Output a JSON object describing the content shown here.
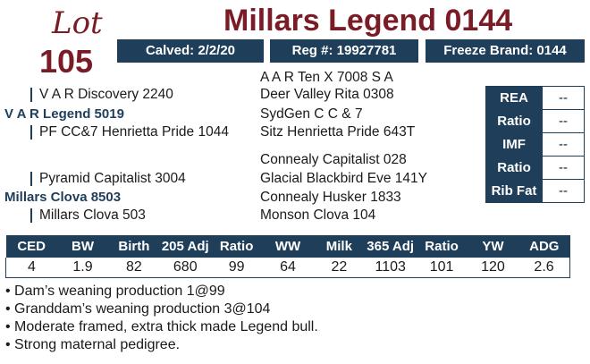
{
  "header": {
    "lot_label": "Lot",
    "lot_number": "105",
    "title": "Millars Legend 0144",
    "calved": "Calved: 2/2/20",
    "reg": "Reg #: 19927781",
    "freeze_brand": "Freeze Brand: 0144"
  },
  "pedigree": {
    "sire": "V A R Legend 5019",
    "sire_sire": "V A R Discovery 2240",
    "sire_dam": "PF CC&7 Henrietta Pride 1044",
    "ssire_sire": "A A R Ten X 7008 S A",
    "ssire_dam": "Deer Valley Rita 0308",
    "sdam_sire": "SydGen C C & 7",
    "sdam_dam": "Sitz Henrietta Pride 643T",
    "dam": "Millars Clova 8503",
    "dam_sire": "Pyramid Capitalist 3004",
    "dam_dam": "Millars Clova 503",
    "dsire_sire": "Connealy Capitalist 028",
    "dsire_dam": "Glacial Blackbird Eve 141Y",
    "ddam_sire": "Connealy Husker 1833",
    "ddam_dam": "Monson Clova 104"
  },
  "carcass": [
    {
      "label": "REA",
      "value": "--"
    },
    {
      "label": "Ratio",
      "value": "--"
    },
    {
      "label": "IMF",
      "value": "--"
    },
    {
      "label": "Ratio",
      "value": "--"
    },
    {
      "label": "Rib Fat",
      "value": "--"
    }
  ],
  "performance": {
    "headers": [
      "CED",
      "BW",
      "Birth",
      "205 Adj",
      "Ratio",
      "WW",
      "Milk",
      "365 Adj",
      "Ratio",
      "YW",
      "ADG"
    ],
    "values": [
      "4",
      "1.9",
      "82",
      "680",
      "99",
      "64",
      "22",
      "1103",
      "101",
      "120",
      "2.6"
    ]
  },
  "notes": [
    "• Dam’s weaning production 1@99",
    "• Granddam’s weaning production 3@104",
    "• Moderate framed, extra thick made Legend bull.",
    "• Strong maternal pedigree."
  ],
  "colors": {
    "maroon": "#7a1c25",
    "navy": "#1f3e5a"
  }
}
